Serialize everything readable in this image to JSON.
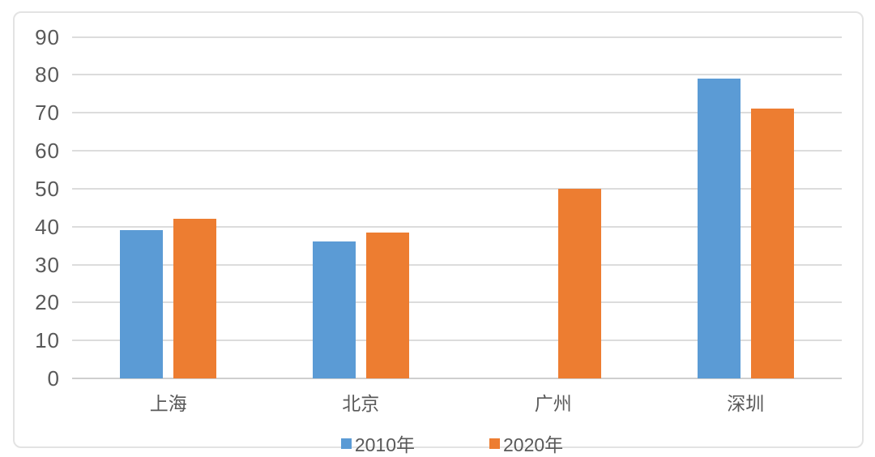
{
  "chart_data": {
    "type": "bar",
    "categories": [
      "上海",
      "北京",
      "广州",
      "深圳"
    ],
    "series": [
      {
        "name": "2010年",
        "color": "#5b9bd5",
        "values": [
          39,
          36,
          0,
          79
        ]
      },
      {
        "name": "2020年",
        "color": "#ed7d31",
        "values": [
          42,
          38.5,
          50,
          71
        ]
      }
    ],
    "title": "",
    "xlabel": "",
    "ylabel": "",
    "ylim": [
      0,
      90
    ],
    "yticks": [
      0,
      10,
      20,
      30,
      40,
      50,
      60,
      70,
      80,
      90
    ],
    "grid": true,
    "legend_position": "bottom"
  },
  "colors": {
    "grid": "#dcdcdc",
    "axis": "#cfcfcf",
    "text": "#595959",
    "frame_border": "#e3e3e3",
    "background": "#ffffff"
  }
}
